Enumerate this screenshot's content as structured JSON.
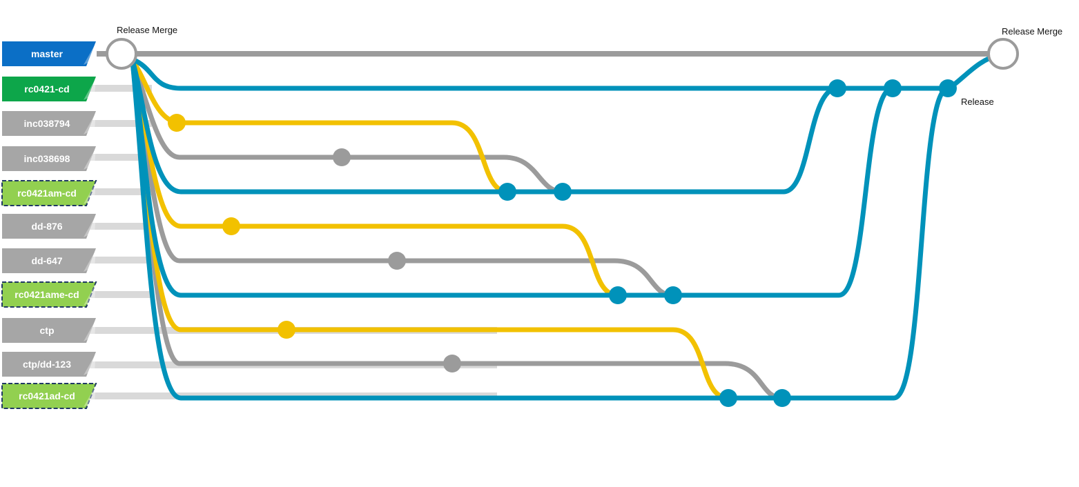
{
  "branches": [
    {
      "id": "master",
      "label": "master",
      "color": "#0B6FC6",
      "style": "solid"
    },
    {
      "id": "rc0421-cd",
      "label": "rc0421-cd",
      "color": "#0DA64A",
      "style": "solid"
    },
    {
      "id": "inc038794",
      "label": "inc038794",
      "color": "#A6A6A6",
      "style": "solid"
    },
    {
      "id": "inc038698",
      "label": "inc038698",
      "color": "#A6A6A6",
      "style": "solid"
    },
    {
      "id": "rc0421am-cd",
      "label": "rc0421am-cd",
      "color": "#92D050",
      "style": "dashed"
    },
    {
      "id": "dd-876",
      "label": "dd-876",
      "color": "#A6A6A6",
      "style": "solid"
    },
    {
      "id": "dd-647",
      "label": "dd-647",
      "color": "#A6A6A6",
      "style": "solid"
    },
    {
      "id": "rc0421ame-cd",
      "label": "rc0421ame-cd",
      "color": "#92D050",
      "style": "dashed"
    },
    {
      "id": "ctp",
      "label": "ctp",
      "color": "#A6A6A6",
      "style": "solid"
    },
    {
      "id": "ctp-dd-123",
      "label": "ctp/dd-123",
      "color": "#A6A6A6",
      "style": "solid"
    },
    {
      "id": "rc0421ad-cd",
      "label": "rc0421ad-cd",
      "color": "#92D050",
      "style": "dashed"
    }
  ],
  "annotations": {
    "release_merge_start": "Release Merge",
    "release_merge_end": "Release Merge",
    "release": "Release"
  },
  "colors": {
    "master_line": "#9B9B9B",
    "release_line": "#0092BA",
    "feature_line": "#F2C100",
    "hotfix_line": "#9B9B9B",
    "track": "#D9D9D9",
    "merge_ring": "#9B9B9B",
    "dashed_border": "#1F3864"
  }
}
